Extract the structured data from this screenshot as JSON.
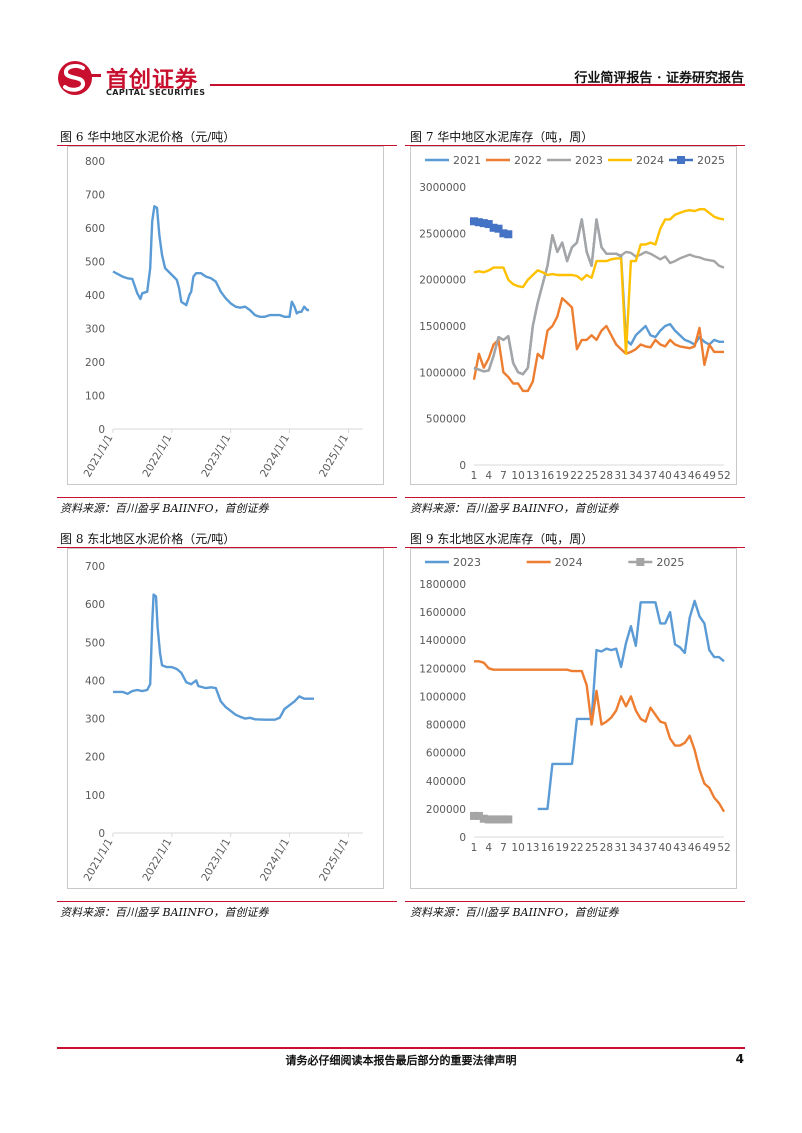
{
  "header": {
    "logo_cn": "首创证券",
    "logo_en": "CAPITAL SECURITIES",
    "report_type": "行业简评报告 · 证券研究报告",
    "brand_color": "#c8102e"
  },
  "footer": {
    "disclaimer": "请务必仔细阅读本报告最后部分的重要法律声明",
    "page_number": "4"
  },
  "figures": [
    {
      "title": "图 6 华中地区水泥价格（元/吨）",
      "source": "资料来源：百川盈孚 BAIINFO，首创证券"
    },
    {
      "title": "图 7 华中地区水泥库存（吨，周）",
      "source": "资料来源：百川盈孚 BAIINFO，首创证券"
    },
    {
      "title": "图 8 东北地区水泥价格（元/吨）",
      "source": "资料来源：百川盈孚 BAIINFO，首创证券"
    },
    {
      "title": "图 9 东北地区水泥库存（吨，周）",
      "source": "资料来源：百川盈孚 BAIINFO，首创证券"
    }
  ],
  "chart_data": [
    {
      "type": "line",
      "title": "",
      "x_ticks": [
        "2021/1/1",
        "2022/1/1",
        "2023/1/1",
        "2024/1/1",
        "2025/1/1"
      ],
      "y_ticks": [
        0,
        100,
        200,
        300,
        400,
        500,
        600,
        700,
        800
      ],
      "ylim": [
        0,
        800
      ],
      "xlim": [
        "2021/1/1",
        "2025/4/1"
      ],
      "grid": false,
      "series": [
        {
          "color": "#5b9bd5",
          "points": [
            [
              "2021/01/01",
              470
            ],
            [
              "2021/02/01",
              462
            ],
            [
              "2021/03/01",
              455
            ],
            [
              "2021/04/01",
              450
            ],
            [
              "2021/05/01",
              448
            ],
            [
              "2021/06/01",
              405
            ],
            [
              "2021/06/20",
              388
            ],
            [
              "2021/07/01",
              405
            ],
            [
              "2021/08/01",
              410
            ],
            [
              "2021/08/20",
              480
            ],
            [
              "2021/09/01",
              620
            ],
            [
              "2021/09/15",
              665
            ],
            [
              "2021/10/01",
              660
            ],
            [
              "2021/10/15",
              580
            ],
            [
              "2021/11/01",
              520
            ],
            [
              "2021/11/20",
              480
            ],
            [
              "2021/12/01",
              475
            ],
            [
              "2022/01/01",
              460
            ],
            [
              "2022/02/01",
              445
            ],
            [
              "2022/02/15",
              420
            ],
            [
              "2022/03/01",
              380
            ],
            [
              "2022/04/01",
              370
            ],
            [
              "2022/04/20",
              400
            ],
            [
              "2022/05/01",
              410
            ],
            [
              "2022/05/15",
              455
            ],
            [
              "2022/06/01",
              465
            ],
            [
              "2022/07/01",
              465
            ],
            [
              "2022/08/01",
              455
            ],
            [
              "2022/09/01",
              450
            ],
            [
              "2022/10/01",
              440
            ],
            [
              "2022/11/01",
              410
            ],
            [
              "2022/12/01",
              390
            ],
            [
              "2023/01/01",
              375
            ],
            [
              "2023/02/01",
              365
            ],
            [
              "2023/03/01",
              362
            ],
            [
              "2023/04/01",
              365
            ],
            [
              "2023/05/01",
              355
            ],
            [
              "2023/06/01",
              340
            ],
            [
              "2023/07/01",
              335
            ],
            [
              "2023/08/01",
              335
            ],
            [
              "2023/09/01",
              340
            ],
            [
              "2023/10/01",
              340
            ],
            [
              "2023/11/01",
              340
            ],
            [
              "2023/12/01",
              335
            ],
            [
              "2024/01/01",
              335
            ],
            [
              "2024/01/15",
              380
            ],
            [
              "2024/02/01",
              365
            ],
            [
              "2024/02/15",
              345
            ],
            [
              "2024/03/01",
              350
            ],
            [
              "2024/03/15",
              350
            ],
            [
              "2024/04/01",
              365
            ],
            [
              "2024/04/20",
              355
            ],
            [
              "2024/05/01",
              355
            ]
          ]
        }
      ]
    },
    {
      "type": "line",
      "title": "",
      "x_ticks": [
        1,
        4,
        7,
        10,
        13,
        16,
        19,
        22,
        25,
        28,
        31,
        34,
        37,
        40,
        43,
        46,
        49,
        52
      ],
      "y_ticks": [
        0,
        500000,
        1000000,
        1500000,
        2000000,
        2500000,
        3000000
      ],
      "ylim": [
        0,
        3000000
      ],
      "xlim": [
        1,
        52
      ],
      "grid": false,
      "legend": "top",
      "series": [
        {
          "name": "2021",
          "color": "#5b9bd5",
          "values": [
            1050000,
            1030000,
            1010000,
            1020000,
            1180000,
            1380000,
            1350000,
            1390000,
            1100000,
            1000000,
            980000,
            1050000,
            1500000,
            1750000,
            1950000,
            2150000,
            2480000,
            2300000,
            2400000,
            2200000,
            2350000,
            2400000,
            2650000,
            2300000,
            2150000,
            2650000,
            2350000,
            2280000,
            2280000,
            2280000,
            2250000,
            1350000,
            1300000,
            1400000,
            1450000,
            1500000,
            1400000,
            1380000,
            1450000,
            1500000,
            1520000,
            1450000,
            1400000,
            1350000,
            1330000,
            1300000,
            1380000,
            1330000,
            1300000,
            1350000,
            1330000,
            1330000
          ]
        },
        {
          "name": "2022",
          "color": "#ed7d31",
          "values": [
            920000,
            1200000,
            1050000,
            1150000,
            1300000,
            1350000,
            1000000,
            950000,
            880000,
            880000,
            800000,
            800000,
            900000,
            1200000,
            1150000,
            1450000,
            1500000,
            1600000,
            1800000,
            1750000,
            1700000,
            1250000,
            1350000,
            1350000,
            1400000,
            1350000,
            1450000,
            1500000,
            1400000,
            1300000,
            1250000,
            1200000,
            1220000,
            1250000,
            1300000,
            1280000,
            1270000,
            1350000,
            1300000,
            1280000,
            1350000,
            1300000,
            1280000,
            1270000,
            1260000,
            1280000,
            1480000,
            1080000,
            1300000,
            1220000,
            1220000,
            1220000
          ]
        },
        {
          "name": "2023",
          "color": "#a5a5a5",
          "values": [
            1040000,
            1030000,
            1010000,
            1020000,
            1180000,
            1380000,
            1350000,
            1390000,
            1100000,
            1000000,
            980000,
            1050000,
            1500000,
            1750000,
            1950000,
            2150000,
            2480000,
            2300000,
            2400000,
            2200000,
            2350000,
            2400000,
            2650000,
            2300000,
            2150000,
            2650000,
            2350000,
            2280000,
            2280000,
            2280000,
            2260000,
            2300000,
            2290000,
            2250000,
            2270000,
            2300000,
            2280000,
            2250000,
            2220000,
            2250000,
            2180000,
            2200000,
            2230000,
            2250000,
            2270000,
            2250000,
            2240000,
            2220000,
            2210000,
            2200000,
            2150000,
            2130000
          ]
        },
        {
          "name": "2024",
          "color": "#ffc000",
          "values": [
            2080000,
            2090000,
            2080000,
            2100000,
            2130000,
            2130000,
            2130000,
            2000000,
            1950000,
            1930000,
            1920000,
            2000000,
            2050000,
            2100000,
            2080000,
            2050000,
            2060000,
            2050000,
            2050000,
            2050000,
            2050000,
            2040000,
            2000000,
            2050000,
            2020000,
            2200000,
            2200000,
            2200000,
            2220000,
            2230000,
            2230000,
            1200000,
            2200000,
            2200000,
            2380000,
            2380000,
            2400000,
            2380000,
            2550000,
            2650000,
            2650000,
            2700000,
            2720000,
            2740000,
            2750000,
            2740000,
            2760000,
            2760000,
            2720000,
            2680000,
            2660000,
            2650000
          ]
        },
        {
          "name": "2025",
          "color": "#4472c4",
          "marker": "square",
          "values": [
            2630000,
            2620000,
            2610000,
            2600000,
            2560000,
            2550000,
            2500000,
            2490000
          ]
        }
      ]
    },
    {
      "type": "line",
      "title": "",
      "x_ticks": [
        "2021/1/1",
        "2022/1/1",
        "2023/1/1",
        "2024/1/1",
        "2025/1/1"
      ],
      "y_ticks": [
        0,
        100,
        200,
        300,
        400,
        500,
        600,
        700
      ],
      "ylim": [
        0,
        700
      ],
      "xlim": [
        "2021/1/1",
        "2025/4/1"
      ],
      "grid": false,
      "series": [
        {
          "color": "#5b9bd5",
          "points": [
            [
              "2021/01/01",
              370
            ],
            [
              "2021/03/01",
              370
            ],
            [
              "2021/04/01",
              365
            ],
            [
              "2021/05/01",
              372
            ],
            [
              "2021/06/01",
              375
            ],
            [
              "2021/07/01",
              372
            ],
            [
              "2021/08/01",
              375
            ],
            [
              "2021/08/20",
              390
            ],
            [
              "2021/09/01",
              550
            ],
            [
              "2021/09/10",
              625
            ],
            [
              "2021/09/25",
              620
            ],
            [
              "2021/10/05",
              540
            ],
            [
              "2021/10/20",
              470
            ],
            [
              "2021/11/01",
              440
            ],
            [
              "2021/12/01",
              435
            ],
            [
              "2022/01/01",
              435
            ],
            [
              "2022/02/01",
              430
            ],
            [
              "2022/03/01",
              420
            ],
            [
              "2022/04/01",
              395
            ],
            [
              "2022/05/01",
              390
            ],
            [
              "2022/06/01",
              400
            ],
            [
              "2022/06/15",
              385
            ],
            [
              "2022/08/01",
              380
            ],
            [
              "2022/09/01",
              382
            ],
            [
              "2022/10/01",
              380
            ],
            [
              "2022/11/01",
              345
            ],
            [
              "2022/12/01",
              330
            ],
            [
              "2023/01/01",
              320
            ],
            [
              "2023/02/01",
              310
            ],
            [
              "2023/03/01",
              305
            ],
            [
              "2023/04/01",
              300
            ],
            [
              "2023/05/01",
              302
            ],
            [
              "2023/06/01",
              298
            ],
            [
              "2023/08/01",
              297
            ],
            [
              "2023/10/01",
              297
            ],
            [
              "2023/11/01",
              302
            ],
            [
              "2023/12/01",
              325
            ],
            [
              "2024/01/01",
              335
            ],
            [
              "2024/02/01",
              345
            ],
            [
              "2024/03/01",
              358
            ],
            [
              "2024/04/01",
              352
            ],
            [
              "2024/06/01",
              352
            ]
          ]
        }
      ]
    },
    {
      "type": "line",
      "title": "",
      "x_ticks": [
        1,
        4,
        7,
        10,
        13,
        16,
        19,
        22,
        25,
        28,
        31,
        34,
        37,
        40,
        43,
        46,
        49,
        52
      ],
      "y_ticks": [
        0,
        200000,
        400000,
        600000,
        800000,
        1000000,
        1200000,
        1400000,
        1600000,
        1800000
      ],
      "ylim": [
        0,
        1800000
      ],
      "xlim": [
        1,
        52
      ],
      "grid": false,
      "legend": "top",
      "series": [
        {
          "name": "2023",
          "color": "#5b9bd5",
          "values": [
            null,
            null,
            null,
            null,
            null,
            null,
            null,
            null,
            null,
            null,
            null,
            null,
            null,
            200000,
            200000,
            200000,
            520000,
            520000,
            520000,
            520000,
            520000,
            840000,
            840000,
            840000,
            840000,
            1330000,
            1320000,
            1340000,
            1330000,
            1340000,
            1210000,
            1380000,
            1500000,
            1360000,
            1670000,
            1670000,
            1670000,
            1670000,
            1520000,
            1520000,
            1600000,
            1370000,
            1350000,
            1310000,
            1560000,
            1680000,
            1570000,
            1520000,
            1330000,
            1280000,
            1280000,
            1250000
          ]
        },
        {
          "name": "2024",
          "color": "#ed7d31",
          "values": [
            1250000,
            1250000,
            1240000,
            1200000,
            1190000,
            1190000,
            1190000,
            1190000,
            1190000,
            1190000,
            1190000,
            1190000,
            1190000,
            1190000,
            1190000,
            1190000,
            1190000,
            1190000,
            1190000,
            1190000,
            1180000,
            1180000,
            1180000,
            1080000,
            800000,
            1040000,
            800000,
            820000,
            850000,
            900000,
            1000000,
            930000,
            1000000,
            900000,
            840000,
            820000,
            920000,
            870000,
            820000,
            810000,
            700000,
            650000,
            650000,
            670000,
            720000,
            620000,
            480000,
            380000,
            350000,
            280000,
            240000,
            180000
          ]
        },
        {
          "name": "2025",
          "color": "#a5a5a5",
          "marker": "square",
          "values": [
            150000,
            150000,
            130000,
            125000,
            125000,
            125000,
            125000,
            125000
          ]
        }
      ]
    }
  ]
}
